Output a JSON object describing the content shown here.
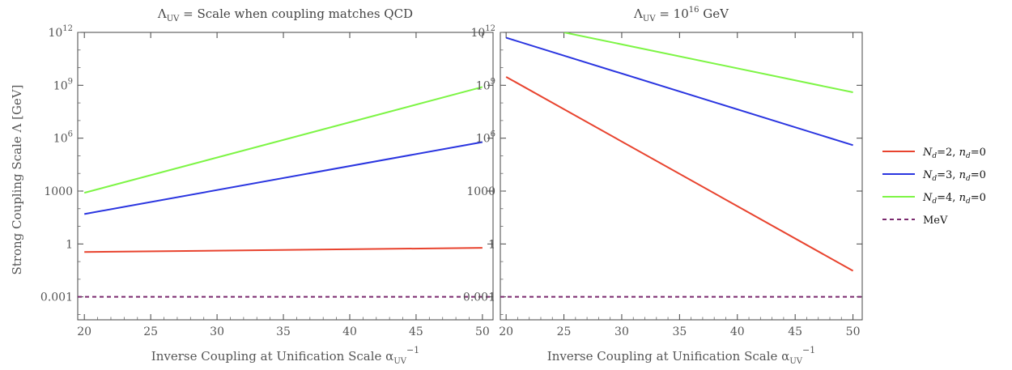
{
  "chart_data": [
    {
      "type": "line",
      "title": "Λ_UV = Scale when coupling matches QCD",
      "title_parts": {
        "lam": "Λ",
        "sub": "UV",
        "rest": " = Scale when coupling matches QCD"
      },
      "xlabel": "Inverse Coupling at Unification Scale  α_UV^−1",
      "ylabel": "Strong Coupling Scale  Λ [GeV]",
      "y_scale": "log",
      "xlim": [
        19.5,
        50.8
      ],
      "ylim": [
        5e-05,
        1000000000000.0
      ],
      "x_ticks": [
        20,
        25,
        30,
        35,
        40,
        45,
        50
      ],
      "y_ticks": [
        {
          "value": 0.001,
          "label": "0.001"
        },
        {
          "value": 1,
          "label": "1"
        },
        {
          "value": 1000,
          "label": "1000"
        },
        {
          "value": 1000000,
          "label": "10",
          "sup": "6"
        },
        {
          "value": 1000000000,
          "label": "10",
          "sup": "9"
        },
        {
          "value": 1000000000000,
          "label": "10",
          "sup": "12"
        }
      ],
      "grid": false,
      "series": [
        {
          "key": "nd2",
          "color": "#e8432e",
          "style": "solid",
          "x": [
            20,
            50
          ],
          "y": [
            0.35,
            0.6
          ]
        },
        {
          "key": "nd3",
          "color": "#2a35e0",
          "style": "solid",
          "x": [
            20,
            50
          ],
          "y": [
            50,
            600000
          ]
        },
        {
          "key": "nd4",
          "color": "#7df545",
          "style": "solid",
          "x": [
            20,
            50
          ],
          "y": [
            800,
            800000000
          ]
        },
        {
          "key": "mev",
          "color": "#7a2a6e",
          "style": "dashed",
          "x": [
            19.5,
            50.8
          ],
          "y": [
            0.001,
            0.001
          ]
        }
      ]
    },
    {
      "type": "line",
      "title": "Λ_UV = 10^16 GeV",
      "title_parts": {
        "lam": "Λ",
        "sub": "UV",
        "rest": " = 10",
        "sup": "16",
        "tail": " GeV"
      },
      "xlabel": "Inverse Coupling at Unification Scale  α_UV^−1",
      "ylabel": "",
      "y_scale": "log",
      "xlim": [
        19.5,
        50.8
      ],
      "ylim": [
        5e-05,
        1000000000000.0
      ],
      "x_ticks": [
        20,
        25,
        30,
        35,
        40,
        45,
        50
      ],
      "y_ticks": [
        {
          "value": 0.001,
          "label": "0.001"
        },
        {
          "value": 1,
          "label": "1"
        },
        {
          "value": 1000,
          "label": "1000"
        },
        {
          "value": 1000000,
          "label": "10",
          "sup": "6"
        },
        {
          "value": 1000000000,
          "label": "10",
          "sup": "9"
        },
        {
          "value": 1000000000000,
          "label": "10",
          "sup": "12"
        }
      ],
      "grid": false,
      "series": [
        {
          "key": "nd2",
          "color": "#e8432e",
          "style": "solid",
          "x": [
            20,
            50
          ],
          "y": [
            3000000000,
            0.03
          ]
        },
        {
          "key": "nd3",
          "color": "#2a35e0",
          "style": "solid",
          "x": [
            20,
            50
          ],
          "y": [
            500000000000,
            400000
          ]
        },
        {
          "key": "nd4",
          "color": "#7df545",
          "style": "solid",
          "x": [
            25,
            50
          ],
          "y": [
            1000000000000,
            400000000
          ]
        },
        {
          "key": "mev",
          "color": "#7a2a6e",
          "style": "dashed",
          "x": [
            19.5,
            50.8
          ],
          "y": [
            0.001,
            0.001
          ]
        }
      ]
    }
  ],
  "legend": {
    "placement": "right",
    "entries": [
      {
        "key": "nd2",
        "symbol": "N",
        "sub": "d",
        "value": "=2,",
        "symbol2": "n",
        "sub2": "d",
        "value2": "=0",
        "color": "#e8432e",
        "style": "solid"
      },
      {
        "key": "nd3",
        "symbol": "N",
        "sub": "d",
        "value": "=3,",
        "symbol2": "n",
        "sub2": "d",
        "value2": "=0",
        "color": "#2a35e0",
        "style": "solid"
      },
      {
        "key": "nd4",
        "symbol": "N",
        "sub": "d",
        "value": "=4,",
        "symbol2": "n",
        "sub2": "d",
        "value2": "=0",
        "color": "#7df545",
        "style": "solid"
      },
      {
        "key": "mev",
        "text": "MeV",
        "color": "#7a2a6e",
        "style": "dashed"
      }
    ]
  },
  "axis_text": {
    "xlabel_main": "Inverse Coupling at Unification Scale  α",
    "xlabel_sub": "UV",
    "xlabel_sup": "−1",
    "ylabel": "Strong Coupling Scale  Λ [GeV]"
  }
}
